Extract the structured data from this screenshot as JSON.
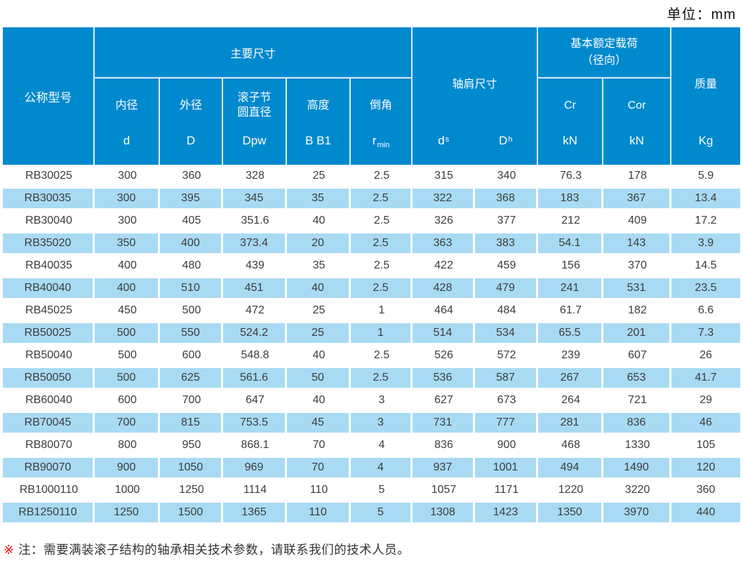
{
  "page": {
    "unit_label": "单位：mm"
  },
  "header": {
    "model": "公称型号",
    "groups": {
      "main_dims": "主要尺寸",
      "shoulder": "轴肩尺寸",
      "load_line1": "基本额定载荷",
      "load_line2": "（径向）",
      "mass": "质量"
    },
    "cols": {
      "bore_label": "内径",
      "bore_sym": "d",
      "outer_label": "外径",
      "outer_sym": "D",
      "pitch_label": "滚子节圆直径",
      "pitch_sym": "Dpw",
      "height_label": "高度",
      "height_sym": "B B1",
      "chamfer_label": "倒角",
      "chamfer_sym": "r",
      "chamfer_sub": "min",
      "ds_sym": "d",
      "ds_sub": "s",
      "dh_sym": "D",
      "dh_sub": "h",
      "cr_label": "Cr",
      "cr_unit": "kN",
      "cor_label": "Cor",
      "cor_unit": "kN",
      "mass_unit": "Kg"
    }
  },
  "rows": [
    {
      "model": "RB30025",
      "d": "300",
      "D": "360",
      "dpw": "328",
      "b": "25",
      "r": "2.5",
      "ds": "315",
      "dh": "340",
      "cr": "76.3",
      "cor": "178",
      "kg": "5.9"
    },
    {
      "model": "RB30035",
      "d": "300",
      "D": "395",
      "dpw": "345",
      "b": "35",
      "r": "2.5",
      "ds": "322",
      "dh": "368",
      "cr": "183",
      "cor": "367",
      "kg": "13.4"
    },
    {
      "model": "RB30040",
      "d": "300",
      "D": "405",
      "dpw": "351.6",
      "b": "40",
      "r": "2.5",
      "ds": "326",
      "dh": "377",
      "cr": "212",
      "cor": "409",
      "kg": "17.2"
    },
    {
      "model": "RB35020",
      "d": "350",
      "D": "400",
      "dpw": "373.4",
      "b": "20",
      "r": "2.5",
      "ds": "363",
      "dh": "383",
      "cr": "54.1",
      "cor": "143",
      "kg": "3.9"
    },
    {
      "model": "RB40035",
      "d": "400",
      "D": "480",
      "dpw": "439",
      "b": "35",
      "r": "2.5",
      "ds": "422",
      "dh": "459",
      "cr": "156",
      "cor": "370",
      "kg": "14.5"
    },
    {
      "model": "RB40040",
      "d": "400",
      "D": "510",
      "dpw": "451",
      "b": "40",
      "r": "2.5",
      "ds": "428",
      "dh": "479",
      "cr": "241",
      "cor": "531",
      "kg": "23.5"
    },
    {
      "model": "RB45025",
      "d": "450",
      "D": "500",
      "dpw": "472",
      "b": "25",
      "r": "1",
      "ds": "464",
      "dh": "484",
      "cr": "61.7",
      "cor": "182",
      "kg": "6.6"
    },
    {
      "model": "RB50025",
      "d": "500",
      "D": "550",
      "dpw": "524.2",
      "b": "25",
      "r": "1",
      "ds": "514",
      "dh": "534",
      "cr": "65.5",
      "cor": "201",
      "kg": "7.3"
    },
    {
      "model": "RB50040",
      "d": "500",
      "D": "600",
      "dpw": "548.8",
      "b": "40",
      "r": "2.5",
      "ds": "526",
      "dh": "572",
      "cr": "239",
      "cor": "607",
      "kg": "26"
    },
    {
      "model": "RB50050",
      "d": "500",
      "D": "625",
      "dpw": "561.6",
      "b": "50",
      "r": "2.5",
      "ds": "536",
      "dh": "587",
      "cr": "267",
      "cor": "653",
      "kg": "41.7"
    },
    {
      "model": "RB60040",
      "d": "600",
      "D": "700",
      "dpw": "647",
      "b": "40",
      "r": "3",
      "ds": "627",
      "dh": "673",
      "cr": "264",
      "cor": "721",
      "kg": "29"
    },
    {
      "model": "RB70045",
      "d": "700",
      "D": "815",
      "dpw": "753.5",
      "b": "45",
      "r": "3",
      "ds": "731",
      "dh": "777",
      "cr": "281",
      "cor": "836",
      "kg": "46"
    },
    {
      "model": "RB80070",
      "d": "800",
      "D": "950",
      "dpw": "868.1",
      "b": "70",
      "r": "4",
      "ds": "836",
      "dh": "900",
      "cr": "468",
      "cor": "1330",
      "kg": "105"
    },
    {
      "model": "RB90070",
      "d": "900",
      "D": "1050",
      "dpw": "969",
      "b": "70",
      "r": "4",
      "ds": "937",
      "dh": "1001",
      "cr": "494",
      "cor": "1490",
      "kg": "120"
    },
    {
      "model": "RB1000110",
      "d": "1000",
      "D": "1250",
      "dpw": "1114",
      "b": "110",
      "r": "5",
      "ds": "1057",
      "dh": "1171",
      "cr": "1220",
      "cor": "3220",
      "kg": "360"
    },
    {
      "model": "RB1250110",
      "d": "1250",
      "D": "1500",
      "dpw": "1365",
      "b": "110",
      "r": "5",
      "ds": "1308",
      "dh": "1423",
      "cr": "1350",
      "cor": "3970",
      "kg": "440"
    }
  ],
  "footnote": {
    "mark": "※",
    "text": "注：需要满装滚子结构的轴承相关技术参数，请联系我们的技术人员。"
  },
  "colors": {
    "header_blue": "#0189ce",
    "row_blue": "#a9daf4",
    "grid_line": "#d9eef9",
    "text_dark": "#3c3c3c",
    "note_mark_red": "#e60012"
  }
}
